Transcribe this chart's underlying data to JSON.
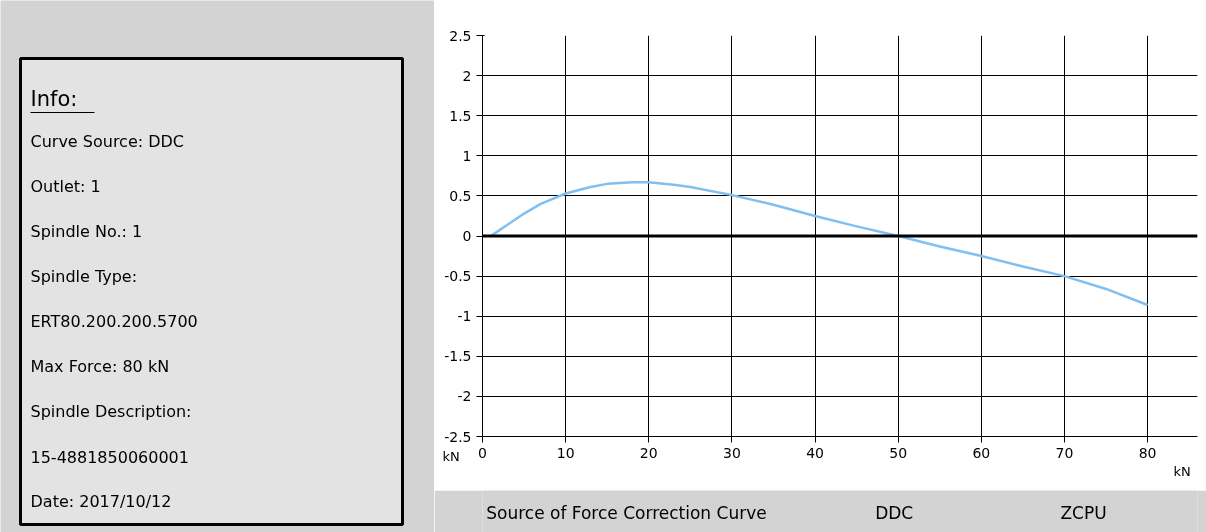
{
  "chart_data": [
    {
      "type": "other",
      "title": "Info:",
      "annotations": [
        "Curve Source: DDC",
        "Outlet: 1",
        "Spindle No.: 1",
        "Spindle Type:",
        "ERT80.200.200.5700",
        "Max Force: 80 kN",
        "Spindle Description:",
        "15-4881850060001",
        "Date: 2017/10/12"
      ]
    },
    {
      "type": "line",
      "x": [
        1,
        2,
        3,
        5,
        7,
        10,
        13,
        15,
        18,
        20,
        23,
        25,
        28,
        30,
        35,
        40,
        45,
        50,
        55,
        60,
        65,
        70,
        75,
        80
      ],
      "series": [
        {
          "color": "#80bff0",
          "values": [
            0.0,
            0.07,
            0.14,
            0.28,
            0.4,
            0.53,
            0.61,
            0.65,
            0.67,
            0.67,
            0.64,
            0.61,
            0.55,
            0.51,
            0.39,
            0.25,
            0.12,
            0.0,
            -0.13,
            -0.25,
            -0.38,
            -0.5,
            -0.66,
            -0.86
          ]
        }
      ],
      "xlim": [
        0,
        86
      ],
      "ylim": [
        -2.5,
        2.5
      ],
      "xticks": [
        0,
        10,
        20,
        30,
        40,
        50,
        60,
        70,
        80
      ],
      "yticks": [
        {
          "value": -2.5,
          "label": "-2.5"
        },
        -2,
        {
          "value": -1.5,
          "label": "-1.5"
        },
        -1,
        {
          "value": -0.5,
          "label": "-0.5"
        },
        0,
        {
          "value": 0.5,
          "label": "0.5"
        },
        1,
        {
          "value": 1.5,
          "label": "1.5"
        },
        2,
        {
          "value": 2.5,
          "label": "2.5"
        }
      ],
      "grid": true,
      "ref_lines": [
        {
          "axis": "y",
          "value": 0,
          "color": "#000000"
        }
      ],
      "annotations": [
        "kN",
        "kN",
        "Source of Force Correction Curve",
        "DDC",
        "ZCPU"
      ]
    }
  ]
}
